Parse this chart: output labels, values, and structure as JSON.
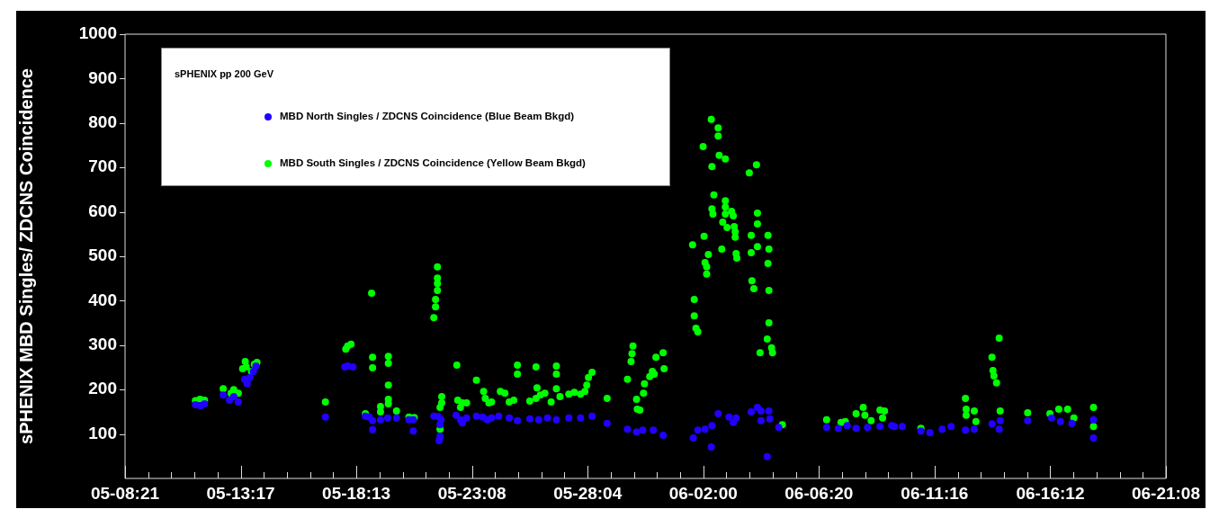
{
  "chart_data": {
    "type": "scatter",
    "ylabel": "sPHENIX MBD Singles/ ZDCNS Coincidence",
    "legend_title": "sPHENIX pp 200 GeV",
    "legend": "top left",
    "marker": "circle",
    "grid": false,
    "xlim": [
      "--05-08T21:05",
      "--06-21T08:47"
    ],
    "ylim": [
      0,
      1000
    ],
    "xticks": [
      {
        "value": "--05-08T21:05",
        "label": "05-08:21"
      },
      {
        "value": "--05-09T20:17",
        "label": null
      },
      {
        "value": "--05-10T19:28",
        "label": null
      },
      {
        "value": "--05-11T18:40",
        "label": null
      },
      {
        "value": "--05-12T17:51",
        "label": null
      },
      {
        "value": "--05-13T17:03",
        "label": "05-13:17"
      },
      {
        "value": "--05-14T16:15",
        "label": null
      },
      {
        "value": "--05-15T15:26",
        "label": null
      },
      {
        "value": "--05-16T14:38",
        "label": null
      },
      {
        "value": "--05-17T13:49",
        "label": null
      },
      {
        "value": "--05-18T13:01",
        "label": "05-18:13"
      },
      {
        "value": "--05-19T12:13",
        "label": null
      },
      {
        "value": "--05-20T11:24",
        "label": null
      },
      {
        "value": "--05-21T10:36",
        "label": null
      },
      {
        "value": "--05-22T09:47",
        "label": null
      },
      {
        "value": "--05-23T08:59",
        "label": "05-23:08"
      },
      {
        "value": "--05-24T08:11",
        "label": null
      },
      {
        "value": "--05-25T07:22",
        "label": null
      },
      {
        "value": "--05-26T06:34",
        "label": null
      },
      {
        "value": "--05-27T05:45",
        "label": null
      },
      {
        "value": "--05-28T04:57",
        "label": "05-28:04"
      },
      {
        "value": "--05-29T04:09",
        "label": null
      },
      {
        "value": "--05-30T03:20",
        "label": null
      },
      {
        "value": "--05-31T02:32",
        "label": null
      },
      {
        "value": "--06-01T01:43",
        "label": null
      },
      {
        "value": "--06-02T00:55",
        "label": "06-02:00"
      },
      {
        "value": "--06-03T00:07",
        "label": null
      },
      {
        "value": "--06-03T23:18",
        "label": null
      },
      {
        "value": "--06-04T22:30",
        "label": null
      },
      {
        "value": "--06-05T21:41",
        "label": null
      },
      {
        "value": "--06-06T20:53",
        "label": "06-06:20"
      },
      {
        "value": "--06-07T20:05",
        "label": null
      },
      {
        "value": "--06-08T19:16",
        "label": null
      },
      {
        "value": "--06-09T18:28",
        "label": null
      },
      {
        "value": "--06-10T17:39",
        "label": null
      },
      {
        "value": "--06-11T16:51",
        "label": "06-11:16"
      },
      {
        "value": "--06-12T16:03",
        "label": null
      },
      {
        "value": "--06-13T15:14",
        "label": null
      },
      {
        "value": "--06-14T14:26",
        "label": null
      },
      {
        "value": "--06-15T13:37",
        "label": null
      },
      {
        "value": "--06-16T12:49",
        "label": "06-16:12"
      },
      {
        "value": "--06-17T12:01",
        "label": null
      },
      {
        "value": "--06-18T11:12",
        "label": null
      },
      {
        "value": "--06-19T10:24",
        "label": null
      },
      {
        "value": "--06-20T09:35",
        "label": null
      },
      {
        "value": "--06-21T08:47",
        "label": "06-21:08"
      }
    ],
    "yticks": [
      100,
      200,
      300,
      400,
      500,
      600,
      700,
      800,
      900,
      1000
    ],
    "series": [
      {
        "name": "MBD North Singles / ZDCNS Coincidence (Blue Beam Bkgd)",
        "color": "#2200ff",
        "x": [
          "--05-11T19:41",
          "--05-12T00:14",
          "--05-12T01:12",
          "--05-12T04:48",
          "--05-12T23:31",
          "--05-13T05:46",
          "--05-13T10:05",
          "--05-13T14:38",
          "--05-13T20:53",
          "--05-13T23:31",
          "--05-14T02:10",
          "--05-14T05:46",
          "--05-14T08:24",
          "--05-17T06:00",
          "--05-18T01:26",
          "--05-18T04:19",
          "--05-18T09:36",
          "--05-18T22:05",
          "--05-19T01:41",
          "--05-19T05:17",
          "--05-19T05:17",
          "--05-19T13:12",
          "--05-19T20:24",
          "--05-20T05:17",
          "--05-20T17:46",
          "--05-20T22:05",
          "--05-20T22:05",
          "--05-21T18:43",
          "--05-21T23:02",
          "--05-22T01:55",
          "--05-22T00:58",
          "--05-22T00:58",
          "--05-22T00:00",
          "--05-22T17:02",
          "--05-22T21:22",
          "--05-22T23:17",
          "--05-23T03:36",
          "--05-23T13:26",
          "--05-23T19:41",
          "--05-24T00:14",
          "--05-24T04:34",
          "--05-24T11:46",
          "--05-24T22:19",
          "--05-25T06:29",
          "--05-25T18:58",
          "--05-26T03:50",
          "--05-26T12:43",
          "--05-26T21:36",
          "--05-27T10:05",
          "--05-27T21:50",
          "--05-28T09:22",
          "--05-29T00:29",
          "--05-29T20:53",
          "--05-30T06:00",
          "--05-30T12:14",
          "--05-30T22:48",
          "--05-31T08:38",
          "--06-01T14:53",
          "--06-01T19:26",
          "--06-02T02:38",
          "--06-02T09:36",
          "--06-02T08:53",
          "--06-02T15:50",
          "--06-03T02:38",
          "--06-03T09:50",
          "--06-03T06:58",
          "--06-04T00:58",
          "--06-04T07:12",
          "--06-04T10:48",
          "--06-04T10:48",
          "--06-04T18:43",
          "--06-04T19:41",
          "--06-05T04:34",
          "--06-04T17:02",
          "--06-07T04:34",
          "--06-07T16:19",
          "--06-08T01:12",
          "--06-08T10:05",
          "--06-08T21:36",
          "--06-09T10:05",
          "--06-10T00:29",
          "--06-09T21:50",
          "--06-10T08:24",
          "--06-11T03:07",
          "--06-11T12:00",
          "--06-12T00:29",
          "--06-12T09:22",
          "--06-12T23:46",
          "--06-13T08:38",
          "--06-14T02:24",
          "--06-14T10:34",
          "--06-14T09:36",
          "--06-15T14:10",
          "--06-16T14:10",
          "--06-16T23:02",
          "--06-17T10:34",
          "--06-18T08:10",
          "--06-18T08:10"
        ],
        "values": [
          166,
          164,
          164,
          168,
          188,
          176,
          184,
          172,
          223,
          213,
          227,
          241,
          253,
          138,
          251,
          253,
          251,
          140,
          138,
          130,
          110,
          132,
          136,
          136,
          132,
          132,
          107,
          140,
          139,
          132,
          121,
          95,
          85,
          142,
          132,
          125,
          136,
          140,
          138,
          132,
          136,
          140,
          136,
          130,
          134,
          132,
          136,
          132,
          136,
          136,
          140,
          124,
          111,
          105,
          109,
          109,
          97,
          91,
          109,
          111,
          119,
          71,
          146,
          138,
          136,
          126,
          150,
          160,
          152,
          130,
          152,
          134,
          115,
          49,
          115,
          113,
          119,
          113,
          115,
          117,
          117,
          119,
          117,
          107,
          103,
          111,
          117,
          109,
          111,
          123,
          130,
          111,
          130,
          136,
          128,
          124,
          132,
          91
        ]
      },
      {
        "name": "MBD South Singles / ZDCNS Coincidence (Yellow Beam Bkgd)",
        "color": "#00ff00",
        "x": [
          "--05-11T19:41",
          "--05-12T00:14",
          "--05-12T04:48",
          "--05-12T23:31",
          "--05-13T07:26",
          "--05-13T10:05",
          "--05-13T14:38",
          "--05-13T18:58",
          "--05-13T21:36",
          "--05-13T22:34",
          "--05-14T03:50",
          "--05-14T06:43",
          "--05-14T09:22",
          "--05-17T06:00",
          "--05-18T02:24",
          "--05-18T04:19",
          "--05-18T07:41",
          "--05-19T04:19",
          "--05-19T05:17",
          "--05-19T05:17",
          "--05-19T21:07",
          "--05-19T21:07",
          "--05-19T21:07",
          "--05-19T21:07",
          "--05-19T21:07",
          "--05-19T13:12",
          "--05-19T13:12",
          "--05-20T05:17",
          "--05-18T22:05",
          "--05-20T17:46",
          "--05-20T23:02",
          "--05-21T22:19",
          "--05-21T22:19",
          "--05-21T22:19",
          "--05-21T22:19",
          "--05-21T20:24",
          "--05-21T20:24",
          "--05-21T18:43",
          "--05-22T02:38",
          "--05-22T02:38",
          "--05-22T00:58",
          "--05-22T00:58",
          "--05-22T17:46",
          "--05-22T18:43",
          "--05-22T23:17",
          "--05-23T03:36",
          "--05-22T21:22",
          "--05-23T13:26",
          "--05-23T20:38",
          "--05-23T22:19",
          "--05-24T01:55",
          "--05-24T04:34",
          "--05-24T13:26",
          "--05-24T18:00",
          "--05-24T22:19",
          "--05-25T02:53",
          "--05-25T06:29",
          "--05-25T06:29",
          "--05-25T18:58",
          "--05-26T01:12",
          "--05-26T01:12",
          "--05-26T02:10",
          "--05-26T05:31",
          "--05-26T10:05",
          "--05-26T16:19",
          "--05-26T21:36",
          "--05-26T21:36",
          "--05-26T21:36",
          "--05-27T01:12",
          "--05-27T10:05",
          "--05-27T15:36",
          "--05-27T21:50",
          "--05-28T02:10",
          "--05-28T04:05",
          "--05-28T05:46",
          "--05-28T09:22",
          "--05-29T00:29",
          "--05-29T20:53",
          "--05-30T00:29",
          "--05-30T01:26",
          "--05-30T02:24",
          "--05-30T06:00",
          "--05-30T06:43",
          "--05-30T09:22",
          "--05-30T12:58",
          "--05-30T13:55",
          "--05-30T19:12",
          "--05-30T21:50",
          "--05-30T23:46",
          "--05-31T01:26",
          "--05-31T08:38",
          "--05-31T09:36",
          "--06-02T08:53",
          "--06-02T15:50",
          "--06-02T15:50",
          "--06-02T00:43",
          "--06-02T16:48",
          "--06-02T23:02",
          "--06-02T09:36",
          "--06-04T06:14",
          "--06-03T23:02",
          "--06-02T11:31",
          "--06-02T23:02",
          "--06-02T09:36",
          "--06-02T10:34",
          "--06-02T23:02",
          "--06-03T05:17",
          "--06-03T06:58",
          "--06-02T23:02",
          "--06-02T20:24",
          "--06-03T00:43",
          "--06-03T07:55",
          "--06-03T08:53",
          "--06-03T08:53",
          "--06-04T07:12",
          "--06-04T07:12",
          "--06-04T00:58",
          "--06-04T17:46",
          "--06-04T07:12",
          "--06-04T18:43",
          "--06-04T00:58",
          "--06-04T17:46",
          "--06-02T01:41",
          "--06-01T14:10",
          "--06-02T19:26",
          "--06-02T06:00",
          "--06-03T09:50",
          "--06-03T10:34",
          "--06-02T02:38",
          "--06-02T04:19",
          "--06-02T04:19",
          "--06-04T01:41",
          "--06-04T03:36",
          "--06-04T18:43",
          "--06-01T15:50",
          "--06-01T15:50",
          "--06-01T17:31",
          "--06-01T19:26",
          "--06-04T18:43",
          "--06-04T17:02",
          "--06-04T21:22",
          "--06-04T09:50",
          "--06-04T22:19",
          "--06-05T08:10",
          "--06-07T04:34",
          "--06-07T18:58",
          "--06-07T23:17",
          "--06-08T10:05",
          "--06-08T17:17",
          "--06-08T18:58",
          "--06-09T01:12",
          "--06-09T10:05",
          "--06-09T12:43",
          "--06-09T14:38",
          "--06-11T03:07",
          "--06-12T23:46",
          "--06-13T00:29",
          "--06-13T00:29",
          "--06-13T08:38",
          "--06-13T10:19",
          "--06-14T02:24",
          "--06-14T03:22",
          "--06-14T04:19",
          "--06-14T06:58",
          "--06-14T09:36",
          "--06-14T10:34",
          "--06-15T14:10",
          "--06-16T12:29",
          "--06-16T21:22",
          "--06-17T06:14",
          "--06-17T12:29",
          "--06-18T08:10",
          "--06-18T08:10"
        ],
        "values": [
          175,
          178,
          176,
          202,
          192,
          200,
          192,
          247,
          263,
          251,
          241,
          257,
          261,
          172,
          291,
          298,
          302,
          417,
          273,
          249,
          275,
          259,
          210,
          178,
          168,
          162,
          150,
          152,
          146,
          138,
          137,
          476,
          451,
          439,
          423,
          403,
          386,
          362,
          184,
          170,
          160,
          111,
          255,
          176,
          170,
          170,
          160,
          221,
          196,
          180,
          170,
          172,
          196,
          192,
          172,
          176,
          255,
          235,
          174,
          180,
          251,
          204,
          188,
          192,
          172,
          253,
          235,
          202,
          184,
          190,
          194,
          190,
          196,
          210,
          227,
          239,
          180,
          223,
          263,
          281,
          298,
          178,
          156,
          154,
          192,
          213,
          229,
          241,
          235,
          273,
          283,
          247,
          808,
          789,
          771,
          747,
          727,
          719,
          702,
          706,
          688,
          638,
          625,
          607,
          595,
          611,
          601,
          591,
          595,
          577,
          565,
          567,
          555,
          543,
          597,
          573,
          547,
          547,
          522,
          516,
          508,
          484,
          545,
          526,
          516,
          504,
          506,
          496,
          486,
          476,
          460,
          445,
          427,
          423,
          403,
          366,
          338,
          330,
          350,
          314,
          294,
          283,
          283,
          121,
          132,
          126,
          128,
          146,
          160,
          142,
          130,
          154,
          136,
          152,
          113,
          180,
          156,
          142,
          152,
          128,
          273,
          243,
          231,
          215,
          316,
          152,
          148,
          146,
          156,
          156,
          136,
          160,
          117
        ]
      }
    ]
  }
}
